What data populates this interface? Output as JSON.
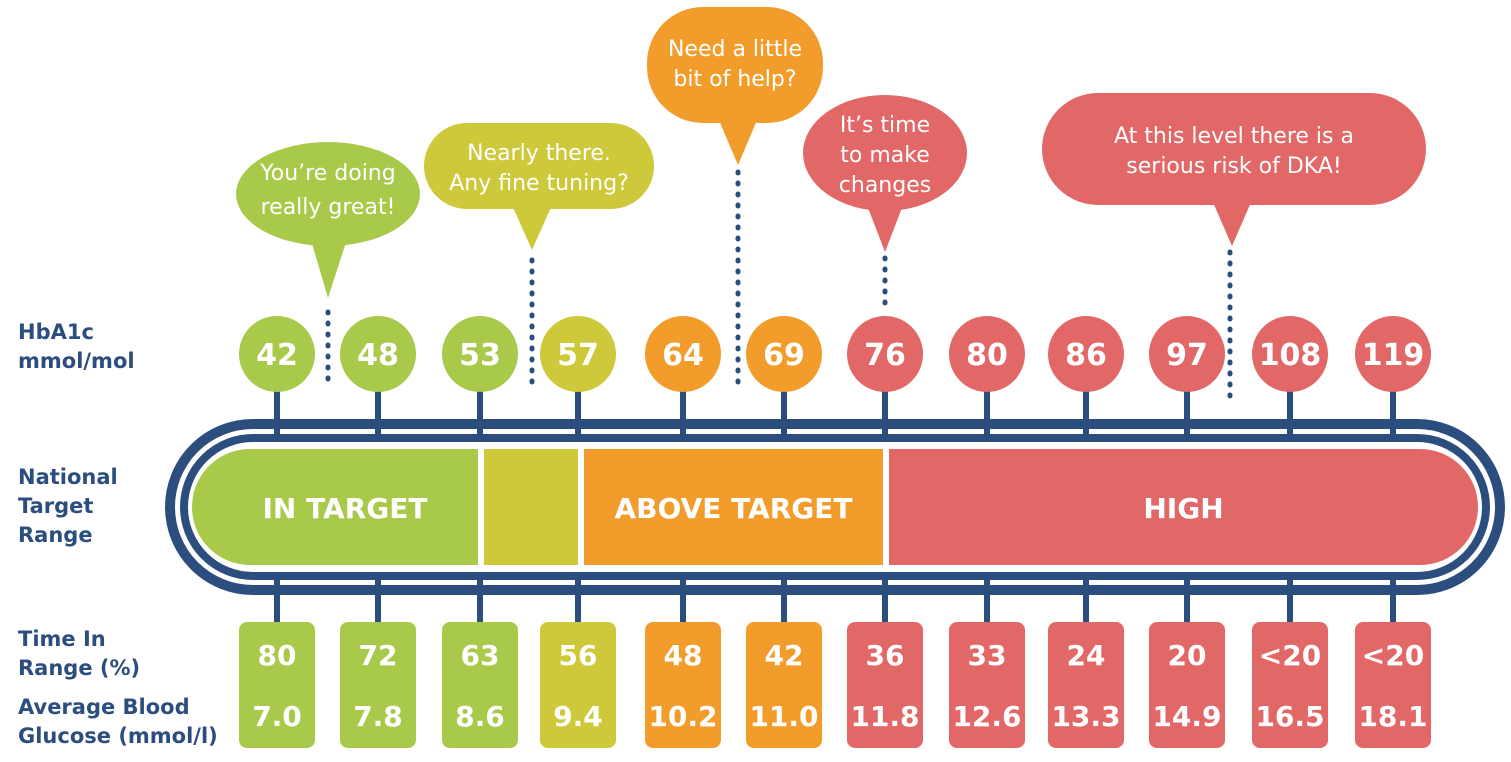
{
  "labels": {
    "hba1c": "HbA1c\nmmol/mol",
    "national_target_range": "National\nTarget\nRange",
    "time_in_range": "Time In\nRange (%)",
    "average_blood_glucose": "Average Blood\nGlucose (mmol/l)"
  },
  "colors": {
    "navy": "#2b4e7e",
    "light_green": "#a9c94a",
    "yellow_green": "#cdc93a",
    "orange": "#f29d2b",
    "red": "#e26868"
  },
  "bands": [
    {
      "label": "IN TARGET",
      "color": "#a9c94a"
    },
    {
      "label": "",
      "color": "#cdc93a"
    },
    {
      "label": "ABOVE TARGET",
      "color": "#f29d2b"
    },
    {
      "label": "HIGH",
      "color": "#e26868"
    }
  ],
  "columns": [
    {
      "hba1c": "42",
      "time_in_range": "80",
      "avg_glucose": "7.0",
      "color": "#a9c94a"
    },
    {
      "hba1c": "48",
      "time_in_range": "72",
      "avg_glucose": "7.8",
      "color": "#a9c94a"
    },
    {
      "hba1c": "53",
      "time_in_range": "63",
      "avg_glucose": "8.6",
      "color": "#a9c94a"
    },
    {
      "hba1c": "57",
      "time_in_range": "56",
      "avg_glucose": "9.4",
      "color": "#cdc93a"
    },
    {
      "hba1c": "64",
      "time_in_range": "48",
      "avg_glucose": "10.2",
      "color": "#f29d2b"
    },
    {
      "hba1c": "69",
      "time_in_range": "42",
      "avg_glucose": "11.0",
      "color": "#f29d2b"
    },
    {
      "hba1c": "76",
      "time_in_range": "36",
      "avg_glucose": "11.8",
      "color": "#e26868"
    },
    {
      "hba1c": "80",
      "time_in_range": "33",
      "avg_glucose": "12.6",
      "color": "#e26868"
    },
    {
      "hba1c": "86",
      "time_in_range": "24",
      "avg_glucose": "13.3",
      "color": "#e26868"
    },
    {
      "hba1c": "97",
      "time_in_range": "20",
      "avg_glucose": "14.9",
      "color": "#e26868"
    },
    {
      "hba1c": "108",
      "time_in_range": "<20",
      "avg_glucose": "16.5",
      "color": "#e26868"
    },
    {
      "hba1c": "119",
      "time_in_range": "<20",
      "avg_glucose": "18.1",
      "color": "#e26868"
    }
  ],
  "callouts": [
    {
      "text": "You’re doing\nreally great!",
      "color": "#a9c94a"
    },
    {
      "text": "Nearly there.\nAny fine tuning?",
      "color": "#cdc93a"
    },
    {
      "text": "Need a little\nbit of help?",
      "color": "#f29d2b"
    },
    {
      "text": "It’s time\nto make\nchanges",
      "color": "#e26868"
    },
    {
      "text": "At this level there is a\nserious risk of DKA!",
      "color": "#e26868"
    }
  ]
}
